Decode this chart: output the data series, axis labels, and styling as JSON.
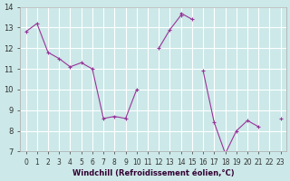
{
  "xlabel": "Windchill (Refroidissement éolien,°C)",
  "background_color": "#cce8e8",
  "grid_color": "#ffffff",
  "line_color": "#993399",
  "marker": "+",
  "series": [
    [
      12.8,
      13.2,
      11.8,
      11.5,
      11.1,
      11.3,
      11.0,
      8.6,
      8.7,
      8.6,
      10.0,
      null,
      null,
      null,
      13.7,
      13.4,
      null,
      null,
      null,
      null,
      null,
      null,
      null,
      null
    ],
    [
      null,
      null,
      null,
      null,
      null,
      null,
      null,
      null,
      null,
      null,
      null,
      null,
      12.0,
      12.9,
      13.6,
      null,
      10.9,
      8.4,
      6.9,
      8.0,
      8.5,
      8.2,
      null,
      8.6
    ],
    [
      null,
      null,
      null,
      null,
      null,
      null,
      null,
      null,
      null,
      null,
      null,
      null,
      null,
      null,
      null,
      null,
      null,
      null,
      null,
      null,
      null,
      null,
      null,
      null
    ],
    [
      null,
      null,
      null,
      null,
      null,
      null,
      null,
      null,
      null,
      null,
      null,
      null,
      null,
      null,
      null,
      null,
      null,
      null,
      null,
      null,
      null,
      null,
      null,
      null
    ]
  ],
  "xlim": [
    -0.5,
    23.5
  ],
  "ylim": [
    7,
    14
  ],
  "yticks": [
    7,
    8,
    9,
    10,
    11,
    12,
    13,
    14
  ],
  "xticks": [
    0,
    1,
    2,
    3,
    4,
    5,
    6,
    7,
    8,
    9,
    10,
    11,
    12,
    13,
    14,
    15,
    16,
    17,
    18,
    19,
    20,
    21,
    22,
    23
  ]
}
